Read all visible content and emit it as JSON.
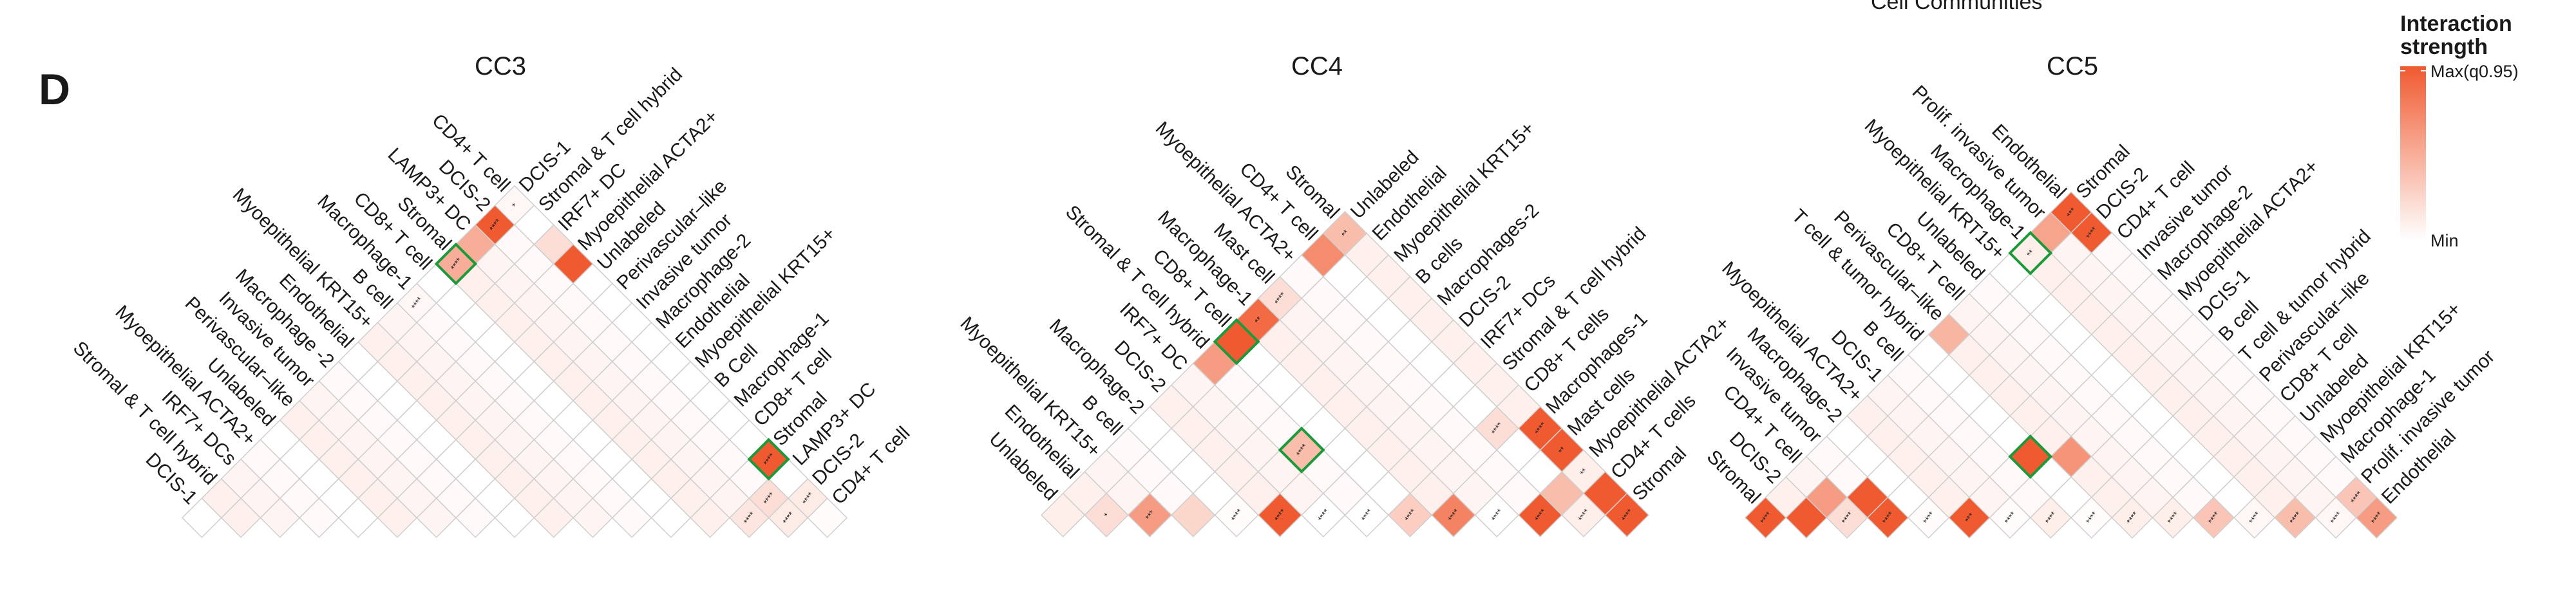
{
  "figure": {
    "panel_letter": "D",
    "supertitle": "Cell Communities"
  },
  "legend": {
    "title_line1": "Interaction",
    "title_line2": "strength",
    "max_label": "Max(q0.95)",
    "min_label": "Min",
    "color_max": "#f05a30",
    "color_min": "#ffffff",
    "highlight_color": "#1a9a3a"
  },
  "chart_data": [
    {
      "type": "heatmap",
      "title": "CC3",
      "left_labels": [
        "DCIS-1",
        "Stromal & T cell hybrid",
        "IRF7+ DCs",
        "Myoepithelial ACTA2+",
        "Unlabeled",
        "Perivascular–like",
        "Invasive tumor",
        "Macrophage -2",
        "Endothelial",
        "Myoepithelial KRT15+",
        "B cell",
        "Macrophage-1",
        "CD8+ T cell",
        "Stromal",
        "LAMP3+ DC",
        "DCIS-2",
        "CD4+ T cell"
      ],
      "right_labels": [
        "DCIS-1",
        "Stromal & T cell hybrid",
        "IRF7+ DC",
        "Myoepithelial ACTA2+",
        "Unlabeled",
        "Perivascular–like",
        "Invasive tumor",
        "Macrophage-2",
        "Endothelial",
        "Myoepithelial KRT15+",
        "B Cell",
        "Macrophage-1",
        "CD8+ T cell",
        "Stromal",
        "LAMP3+ DC",
        "DCIS-2",
        "CD4+ T cell"
      ],
      "value_scale": "0 = Min, 1 = Max(q0.95)",
      "cells": [
        {
          "l": 0,
          "r": 0,
          "v": 0.05,
          "sig": "****"
        },
        {
          "l": 3,
          "r": 0,
          "v": 0.55,
          "sig": "****"
        },
        {
          "l": 4,
          "r": 0,
          "v": 0.45,
          "sig": "**"
        },
        {
          "l": 6,
          "r": 0,
          "v": 0.2,
          "sig": "****"
        },
        {
          "l": 7,
          "r": 0,
          "v": 0.02,
          "sig": "****"
        },
        {
          "l": 8,
          "r": 0,
          "v": 0.2,
          "sig": "****"
        },
        {
          "l": 9,
          "r": 0,
          "v": 0.2,
          "sig": "****"
        },
        {
          "l": 10,
          "r": 0,
          "v": 0.55,
          "sig": "****"
        },
        {
          "l": 11,
          "r": 0,
          "v": 1.0,
          "sig": "****"
        },
        {
          "l": 12,
          "r": 0,
          "v": 1.0,
          "sig": "****"
        },
        {
          "l": 13,
          "r": 0,
          "v": 1.0,
          "sig": "****"
        },
        {
          "l": 14,
          "r": 0,
          "v": 0.03,
          "sig": "****"
        },
        {
          "l": 15,
          "r": 0,
          "v": 1.0,
          "sig": "****"
        },
        {
          "l": 16,
          "r": 0,
          "v": 1.0,
          "sig": "****"
        },
        {
          "l": 11,
          "r": 1,
          "v": 0.5,
          "sig": "****"
        },
        {
          "l": 12,
          "r": 1,
          "v": 1.0,
          "sig": "****"
        },
        {
          "l": 13,
          "r": 1,
          "v": 1.0,
          "sig": "****"
        },
        {
          "l": 10,
          "r": 2,
          "v": 0.45,
          "sig": "**"
        },
        {
          "l": 11,
          "r": 2,
          "v": 1.0,
          "sig": "****"
        },
        {
          "l": 12,
          "r": 2,
          "v": 0.05,
          "sig": "****"
        },
        {
          "l": 13,
          "r": 2,
          "v": 0.5,
          "sig": ""
        },
        {
          "l": 14,
          "r": 2,
          "v": 0.2,
          "sig": ""
        },
        {
          "l": 15,
          "r": 2,
          "v": 0.2,
          "sig": ""
        },
        {
          "l": 16,
          "r": 3,
          "v": 1.0,
          "sig": "****"
        },
        {
          "l": 15,
          "r": 3,
          "v": 1.0,
          "sig": "**"
        },
        {
          "l": 14,
          "r": 3,
          "v": 1.0,
          "sig": "****"
        },
        {
          "l": 13,
          "r": 3,
          "v": 1.0,
          "sig": ""
        },
        {
          "l": 12,
          "r": 3,
          "v": 0.3,
          "sig": ""
        },
        {
          "l": 11,
          "r": 3,
          "v": 0.35,
          "sig": "****"
        },
        {
          "l": 10,
          "r": 3,
          "v": 0.08,
          "sig": "****"
        },
        {
          "l": 9,
          "r": 3,
          "v": 0.5,
          "sig": "****",
          "highlight": true
        },
        {
          "l": 6,
          "r": 5,
          "v": 0.5,
          "sig": "****"
        },
        {
          "l": 7,
          "r": 5,
          "v": 0.45,
          "sig": "*"
        },
        {
          "l": 8,
          "r": 5,
          "v": 0.55,
          "sig": "****"
        },
        {
          "l": 9,
          "r": 5,
          "v": 0.4,
          "sig": "****"
        },
        {
          "l": 10,
          "r": 5,
          "v": 0.05,
          "sig": "****"
        },
        {
          "l": 13,
          "r": 13,
          "v": 1.0,
          "sig": "****",
          "highlight": true
        },
        {
          "l": 15,
          "r": 15,
          "v": 0.7,
          "sig": ""
        },
        {
          "l": 16,
          "r": 16,
          "v": 0.02,
          "sig": ""
        },
        {
          "l": 16,
          "r": 15,
          "v": 0.12,
          "sig": "****"
        },
        {
          "l": 15,
          "r": 16,
          "v": 0.12,
          "sig": "****"
        },
        {
          "l": 14,
          "r": 16,
          "v": 0.15,
          "sig": "****"
        },
        {
          "l": 14,
          "r": 15,
          "v": 0.2,
          "sig": "****"
        },
        {
          "l": 2,
          "r": 0,
          "v": 0.0,
          "sig": ""
        },
        {
          "l": 1,
          "r": 0,
          "v": 0.0,
          "sig": ""
        },
        {
          "l": 5,
          "r": 0,
          "v": 0.05,
          "sig": "*"
        }
      ]
    },
    {
      "type": "heatmap",
      "title": "CC4",
      "left_labels": [
        "Unlabeled",
        "Endothelial",
        "Myoepithelial KRT15+",
        "B cell",
        "Macrophage-2",
        "DCIS-2",
        "IRF7+ DC",
        "Stromal & T cell hybrid",
        "CD8+ T cell",
        "Macrophage-1",
        "Mast cell",
        "Myoepithelial ACTA2+",
        "CD4+ T cell",
        "Stromal"
      ],
      "right_labels": [
        "Unlabeled",
        "Endothelial",
        "Myoepithelial KRT15+",
        "B cells",
        "Macrophages-2",
        "DCIS-2",
        "IRF7+ DCs",
        "Stromal & T cell hybrid",
        "CD8+ T cells",
        "Macrophages-1",
        "Mast cells",
        "Myoepithelial ACTA2+",
        "CD4+ T cells",
        "Stromal"
      ],
      "value_scale": "0 = Min, 1 = Max(q0.95)",
      "cells": [
        {
          "l": 0,
          "r": 13,
          "v": 0.1,
          "sig": ""
        },
        {
          "l": 1,
          "r": 13,
          "v": 0.2,
          "sig": "*"
        },
        {
          "l": 2,
          "r": 13,
          "v": 0.6,
          "sig": "***"
        },
        {
          "l": 3,
          "r": 13,
          "v": 0.25,
          "sig": ""
        },
        {
          "l": 4,
          "r": 13,
          "v": 0.02,
          "sig": "****"
        },
        {
          "l": 5,
          "r": 13,
          "v": 1.0,
          "sig": "****"
        },
        {
          "l": 6,
          "r": 13,
          "v": 0.0,
          "sig": "****"
        },
        {
          "l": 7,
          "r": 13,
          "v": 0.0,
          "sig": "****"
        },
        {
          "l": 8,
          "r": 13,
          "v": 0.3,
          "sig": "****"
        },
        {
          "l": 9,
          "r": 13,
          "v": 0.75,
          "sig": "****"
        },
        {
          "l": 10,
          "r": 13,
          "v": 0.0,
          "sig": "****"
        },
        {
          "l": 11,
          "r": 13,
          "v": 1.0,
          "sig": "****"
        },
        {
          "l": 12,
          "r": 13,
          "v": 0.1,
          "sig": "****"
        },
        {
          "l": 13,
          "r": 13,
          "v": 1.0,
          "sig": "****"
        },
        {
          "l": 4,
          "r": 10,
          "v": 0.4,
          "sig": "****",
          "highlight": true
        },
        {
          "l": 7,
          "r": 5,
          "v": 1.0,
          "sig": "",
          "highlight": true
        },
        {
          "l": 0,
          "r": 0,
          "v": 0.4,
          "sig": "**"
        },
        {
          "l": 1,
          "r": 1,
          "v": 0.7,
          "sig": ""
        },
        {
          "l": 3,
          "r": 3,
          "v": 0.2,
          "sig": "****"
        },
        {
          "l": 4,
          "r": 4,
          "v": 0.9,
          "sig": "**"
        },
        {
          "l": 6,
          "r": 6,
          "v": 0.6,
          "sig": ""
        },
        {
          "l": 9,
          "r": 9,
          "v": 1.0,
          "sig": "****"
        },
        {
          "l": 10,
          "r": 10,
          "v": 1.0,
          "sig": "**"
        },
        {
          "l": 12,
          "r": 12,
          "v": 1.0,
          "sig": ""
        },
        {
          "l": 11,
          "r": 12,
          "v": 0.4,
          "sig": ""
        },
        {
          "l": 8,
          "r": 9,
          "v": 0.2,
          "sig": "****"
        },
        {
          "l": 11,
          "r": 11,
          "v": 0.1,
          "sig": "**"
        }
      ]
    },
    {
      "type": "heatmap",
      "title": "CC5",
      "left_labels": [
        "Stromal",
        "DCIS-2",
        "CD4+ T cell",
        "Invasive tumor",
        "Macrophage-2",
        "Myoepithelial ACTA2+",
        "DCIS-1",
        "B cell",
        "T cell & tumor hybrid",
        "Perivascular–like",
        "CD8+ T cell",
        "Unlabeled",
        "Myoepithelial KRT15+",
        "Macrophage-1",
        "Prolif. invasive tumor",
        "Endothelial"
      ],
      "right_labels": [
        "Stromal",
        "DCIS-2",
        "CD4+ T cell",
        "Invasive tumor",
        "Macrophage-2",
        "Myoepithelial ACTA2+",
        "DCIS-1",
        "B cell",
        "T cell & tumor hybrid",
        "Perivascular–like",
        "CD8+ T cell",
        "Unlabeled",
        "Myoepithelial KRT15+",
        "Macrophage-1",
        "Prolif. invasive tumor",
        "Endothelial"
      ],
      "value_scale": "0 = Min, 1 = Max(q0.95)",
      "cells": [
        {
          "l": 0,
          "r": 15,
          "v": 1.0,
          "sig": "****"
        },
        {
          "l": 1,
          "r": 15,
          "v": 1.0,
          "sig": ""
        },
        {
          "l": 2,
          "r": 15,
          "v": 0.2,
          "sig": "****"
        },
        {
          "l": 3,
          "r": 15,
          "v": 1.0,
          "sig": "****"
        },
        {
          "l": 4,
          "r": 15,
          "v": 0.02,
          "sig": "****"
        },
        {
          "l": 5,
          "r": 15,
          "v": 1.0,
          "sig": "***"
        },
        {
          "l": 6,
          "r": 15,
          "v": 0.02,
          "sig": "****"
        },
        {
          "l": 7,
          "r": 15,
          "v": 0.1,
          "sig": "****"
        },
        {
          "l": 8,
          "r": 15,
          "v": 0.02,
          "sig": "****"
        },
        {
          "l": 9,
          "r": 15,
          "v": 0.1,
          "sig": "****"
        },
        {
          "l": 10,
          "r": 15,
          "v": 0.1,
          "sig": "****"
        },
        {
          "l": 11,
          "r": 15,
          "v": 0.35,
          "sig": "****"
        },
        {
          "l": 12,
          "r": 15,
          "v": 0.05,
          "sig": "****"
        },
        {
          "l": 13,
          "r": 15,
          "v": 0.4,
          "sig": "****"
        },
        {
          "l": 14,
          "r": 15,
          "v": 0.05,
          "sig": "****"
        },
        {
          "l": 15,
          "r": 15,
          "v": 0.6,
          "sig": "****"
        },
        {
          "l": 0,
          "r": 0,
          "v": 1.0,
          "sig": "***"
        },
        {
          "l": 15,
          "r": 1,
          "v": 1.0,
          "sig": "****"
        },
        {
          "l": 12,
          "r": 2,
          "v": 0.1,
          "sig": "**",
          "highlight": true
        },
        {
          "l": 11,
          "r": 1,
          "v": 0.55,
          "sig": ""
        },
        {
          "l": 5,
          "r": 12,
          "v": 1.0,
          "sig": "",
          "highlight": true
        },
        {
          "l": 6,
          "r": 12,
          "v": 0.65,
          "sig": ""
        },
        {
          "l": 2,
          "r": 14,
          "v": 1.0,
          "sig": ""
        },
        {
          "l": 1,
          "r": 14,
          "v": 0.6,
          "sig": ""
        },
        {
          "l": 8,
          "r": 6,
          "v": 0.45,
          "sig": ""
        },
        {
          "l": 14,
          "r": 14,
          "v": 0.35,
          "sig": "****"
        }
      ]
    }
  ]
}
